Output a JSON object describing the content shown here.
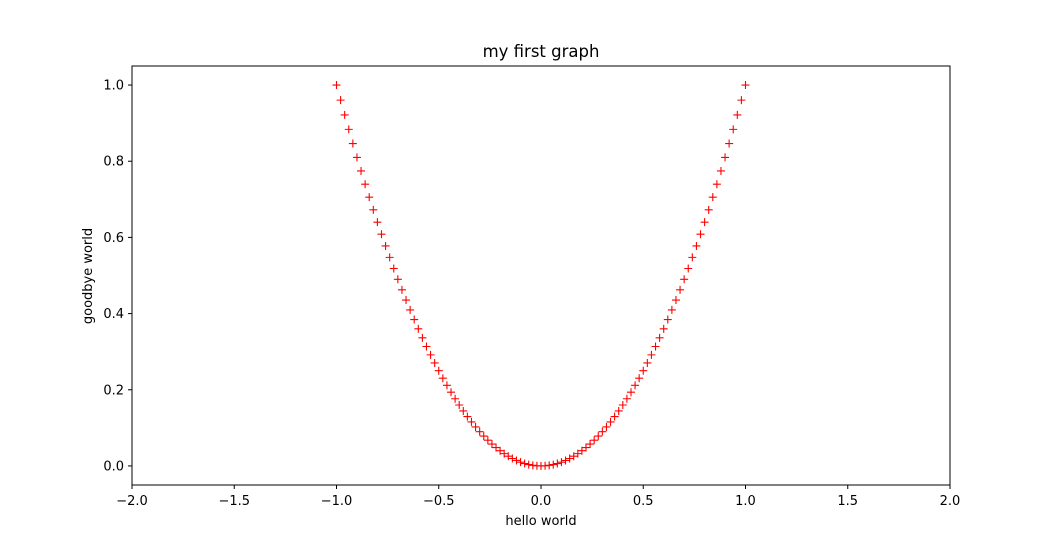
{
  "chart_data": {
    "type": "scatter",
    "title": "my first graph",
    "xlabel": "hello world",
    "ylabel": "goodbye world",
    "xlim": [
      -2.0,
      2.0
    ],
    "ylim": [
      -0.05,
      1.05
    ],
    "xticks": [
      -2.0,
      -1.5,
      -1.0,
      -0.5,
      0.0,
      0.5,
      1.0,
      1.5,
      2.0
    ],
    "xtick_labels": [
      "−2.0",
      "−1.5",
      "−1.0",
      "−0.5",
      "0.0",
      "0.5",
      "1.0",
      "1.5",
      "2.0"
    ],
    "yticks": [
      0.0,
      0.2,
      0.4,
      0.6,
      0.8,
      1.0
    ],
    "ytick_labels": [
      "0.0",
      "0.2",
      "0.4",
      "0.6",
      "0.8",
      "1.0"
    ],
    "grid": false,
    "series": [
      {
        "marker": "+",
        "color": "#ff0000",
        "x": [
          -1.0,
          -0.98,
          -0.96,
          -0.94,
          -0.92,
          -0.9,
          -0.88,
          -0.86,
          -0.84,
          -0.82,
          -0.8,
          -0.78,
          -0.76,
          -0.74,
          -0.72,
          -0.7,
          -0.68,
          -0.66,
          -0.64,
          -0.62,
          -0.6,
          -0.58,
          -0.56,
          -0.54,
          -0.52,
          -0.5,
          -0.48,
          -0.46,
          -0.44,
          -0.42,
          -0.4,
          -0.38,
          -0.36,
          -0.34,
          -0.32,
          -0.3,
          -0.28,
          -0.26,
          -0.24,
          -0.22,
          -0.2,
          -0.18,
          -0.16,
          -0.14,
          -0.12,
          -0.1,
          -0.08,
          -0.06,
          -0.04,
          -0.02,
          0.0,
          0.02,
          0.04,
          0.06,
          0.08,
          0.1,
          0.12,
          0.14,
          0.16,
          0.18,
          0.2,
          0.22,
          0.24,
          0.26,
          0.28,
          0.3,
          0.32,
          0.34,
          0.36,
          0.38,
          0.4,
          0.42,
          0.44,
          0.46,
          0.48,
          0.5,
          0.52,
          0.54,
          0.56,
          0.58,
          0.6,
          0.62,
          0.64,
          0.66,
          0.68,
          0.7,
          0.72,
          0.74,
          0.76,
          0.78,
          0.8,
          0.82,
          0.84,
          0.86,
          0.88,
          0.9,
          0.92,
          0.94,
          0.96,
          0.98,
          1.0
        ],
        "y": [
          1.0,
          0.9604,
          0.9216,
          0.8836,
          0.8464,
          0.81,
          0.7744,
          0.7396,
          0.7056,
          0.6724,
          0.64,
          0.6084,
          0.5776,
          0.5476,
          0.5184,
          0.49,
          0.4624,
          0.4356,
          0.4096,
          0.3844,
          0.36,
          0.3364,
          0.3136,
          0.2916,
          0.2704,
          0.25,
          0.2304,
          0.2116,
          0.1936,
          0.1764,
          0.16,
          0.1444,
          0.1296,
          0.1156,
          0.1024,
          0.09,
          0.0784,
          0.0676,
          0.0576,
          0.0484,
          0.04,
          0.0324,
          0.0256,
          0.0196,
          0.0144,
          0.01,
          0.0064,
          0.0036,
          0.0016,
          0.0004,
          0.0,
          0.0004,
          0.0016,
          0.0036,
          0.0064,
          0.01,
          0.0144,
          0.0196,
          0.0256,
          0.0324,
          0.04,
          0.0484,
          0.0576,
          0.0676,
          0.0784,
          0.09,
          0.1024,
          0.1156,
          0.1296,
          0.1444,
          0.16,
          0.1764,
          0.1936,
          0.2116,
          0.2304,
          0.25,
          0.2704,
          0.2916,
          0.3136,
          0.3364,
          0.36,
          0.3844,
          0.4096,
          0.4356,
          0.4624,
          0.49,
          0.5184,
          0.5476,
          0.5776,
          0.6084,
          0.64,
          0.6724,
          0.7056,
          0.7396,
          0.7744,
          0.81,
          0.8464,
          0.8836,
          0.9216,
          0.9604,
          1.0
        ]
      }
    ]
  }
}
